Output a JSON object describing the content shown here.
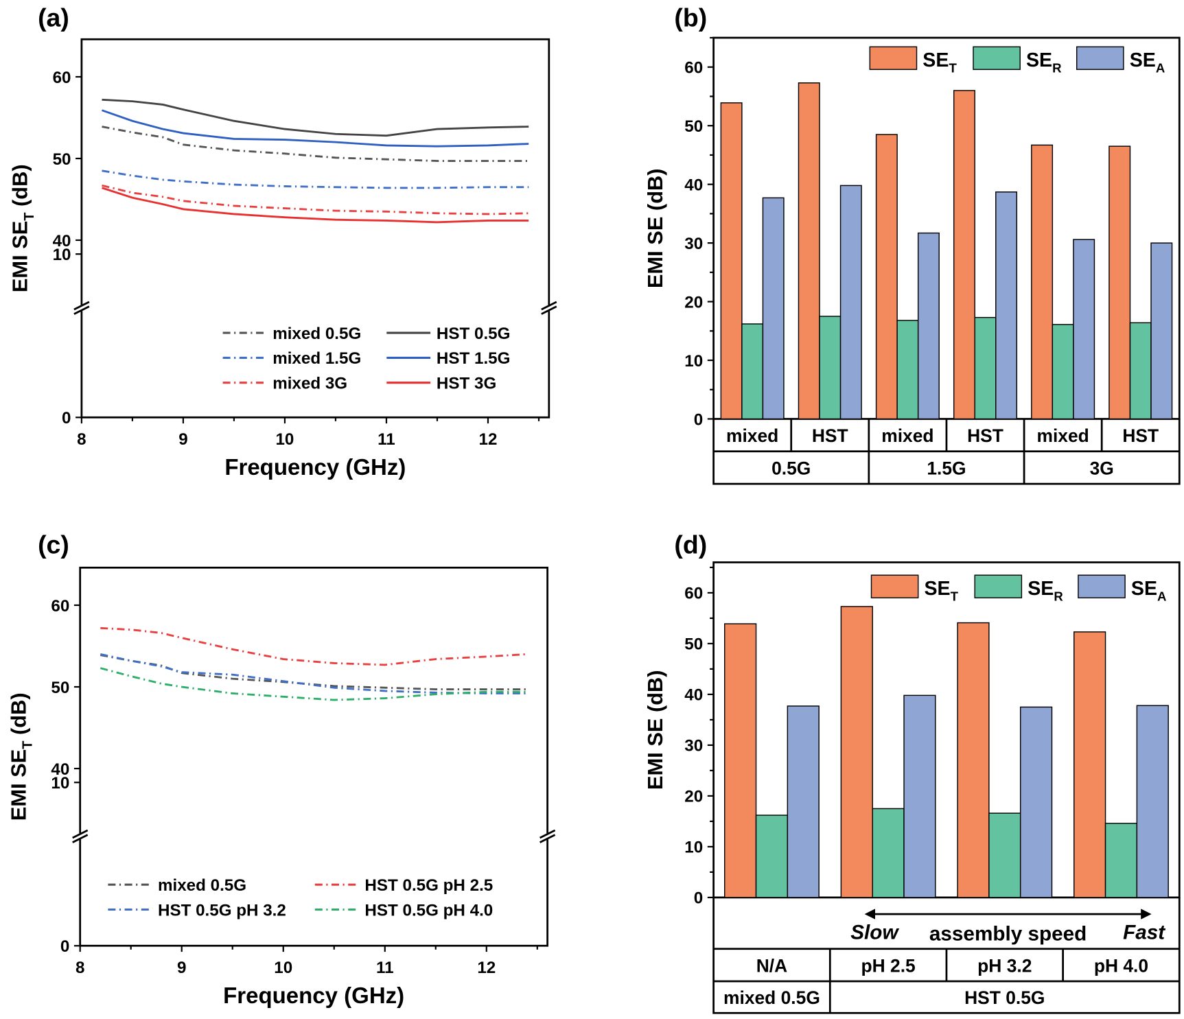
{
  "colors": {
    "SE_T": "#F28A5E",
    "SE_R": "#63C3A0",
    "SE_A": "#8FA5D3"
  },
  "chart_data": [
    {
      "panel": "(a)",
      "type": "line",
      "xlabel": "Frequency (GHz)",
      "ylabel": {
        "main": "EMI SE",
        "sub": "T",
        "unit": " (dB)"
      },
      "xlim": [
        8,
        12.6
      ],
      "xticks": [
        "8",
        "9",
        "10",
        "11",
        "12"
      ],
      "ylim_upper": [
        31.7,
        64.6
      ],
      "ylim_lower": [
        0,
        13.4
      ],
      "yticks_upper": [
        "40",
        "50",
        "60"
      ],
      "yticks_lower": [
        "0",
        "10"
      ],
      "broken_axis": true,
      "legend": "bottom-right",
      "x": [
        8.2,
        8.5,
        8.8,
        9.0,
        9.5,
        10,
        10.5,
        11,
        11.5,
        12,
        12.4
      ],
      "series": [
        {
          "name": "mixed 0.5G",
          "color": "#555555",
          "style": "dashdot",
          "values": [
            53.9,
            53.2,
            52.6,
            51.7,
            51.0,
            50.6,
            50.1,
            49.9,
            49.7,
            49.7,
            49.7
          ]
        },
        {
          "name": "HST 0.5G",
          "color": "#444444",
          "style": "solid",
          "values": [
            57.2,
            57.0,
            56.6,
            56.0,
            54.6,
            53.6,
            53.0,
            52.8,
            53.6,
            53.8,
            53.9
          ]
        },
        {
          "name": "mixed 1.5G",
          "color": "#3f6fc6",
          "style": "dashdot",
          "values": [
            48.5,
            47.9,
            47.4,
            47.2,
            46.8,
            46.6,
            46.5,
            46.4,
            46.4,
            46.5,
            46.5
          ]
        },
        {
          "name": "HST 1.5G",
          "color": "#2f5fc0",
          "style": "solid",
          "values": [
            55.9,
            54.6,
            53.6,
            53.1,
            52.4,
            52.3,
            52.0,
            51.6,
            51.5,
            51.6,
            51.8
          ]
        },
        {
          "name": "mixed 3G",
          "color": "#e84040",
          "style": "dashdot",
          "values": [
            46.7,
            45.8,
            45.3,
            44.8,
            44.2,
            43.9,
            43.6,
            43.5,
            43.3,
            43.2,
            43.3
          ]
        },
        {
          "name": "HST 3G",
          "color": "#e83030",
          "style": "solid",
          "values": [
            46.4,
            45.2,
            44.4,
            43.8,
            43.2,
            42.8,
            42.5,
            42.4,
            42.2,
            42.4,
            42.4
          ]
        }
      ]
    },
    {
      "panel": "(b)",
      "type": "bar",
      "ylabel": "EMI SE (dB)",
      "ylim": [
        0,
        65
      ],
      "yticks": [
        "0",
        "10",
        "20",
        "30",
        "40",
        "50",
        "60"
      ],
      "legend": "top-right",
      "legend_entries": [
        {
          "main": "SE",
          "sub": "T"
        },
        {
          "main": "SE",
          "sub": "R"
        },
        {
          "main": "SE",
          "sub": "A"
        }
      ],
      "categories": [
        "mixed",
        "HST",
        "mixed",
        "HST",
        "mixed",
        "HST"
      ],
      "groups": [
        "0.5G",
        "1.5G",
        "3G"
      ],
      "series": [
        {
          "key": "SE_T",
          "values": [
            53.9,
            57.3,
            48.5,
            56.0,
            46.7,
            46.5
          ]
        },
        {
          "key": "SE_R",
          "values": [
            16.2,
            17.5,
            16.8,
            17.3,
            16.1,
            16.4
          ]
        },
        {
          "key": "SE_A",
          "values": [
            37.7,
            39.8,
            31.7,
            38.7,
            30.6,
            30.0
          ]
        }
      ]
    },
    {
      "panel": "(c)",
      "type": "line",
      "xlabel": "Frequency (GHz)",
      "ylabel": {
        "main": "EMI SE",
        "sub": "T",
        "unit": " (dB)"
      },
      "xlim": [
        8,
        12.6
      ],
      "xticks": [
        "8",
        "9",
        "10",
        "11",
        "12"
      ],
      "ylim_upper": [
        31.7,
        64.6
      ],
      "ylim_lower": [
        0,
        13.4
      ],
      "yticks_upper": [
        "40",
        "50",
        "60"
      ],
      "yticks_lower": [
        "0",
        "10"
      ],
      "broken_axis": true,
      "legend": "bottom",
      "x": [
        8.2,
        8.5,
        8.8,
        9.0,
        9.5,
        10,
        10.5,
        11,
        11.5,
        12,
        12.4
      ],
      "series": [
        {
          "name": "mixed 0.5G",
          "color": "#555555",
          "style": "dashdot",
          "values": [
            53.9,
            53.2,
            52.6,
            51.7,
            51.0,
            50.6,
            50.1,
            49.9,
            49.7,
            49.7,
            49.7
          ]
        },
        {
          "name": "HST 0.5G pH 2.5",
          "color": "#e84040",
          "style": "dashdot",
          "values": [
            57.2,
            57.0,
            56.6,
            56.0,
            54.6,
            53.4,
            52.9,
            52.7,
            53.4,
            53.7,
            54.0
          ]
        },
        {
          "name": "HST 0.5G pH 3.2",
          "color": "#3f6fc6",
          "style": "dashdot",
          "values": [
            54.0,
            53.2,
            52.5,
            51.8,
            51.5,
            50.7,
            49.9,
            49.5,
            49.3,
            49.2,
            49.2
          ]
        },
        {
          "name": "HST 0.5G pH 4.0",
          "color": "#2fae6a",
          "style": "dashdot",
          "values": [
            52.3,
            51.3,
            50.4,
            50.0,
            49.2,
            48.8,
            48.4,
            48.6,
            49.1,
            49.4,
            49.4
          ]
        }
      ]
    },
    {
      "panel": "(d)",
      "type": "bar",
      "ylabel": "EMI SE (dB)",
      "ylim": [
        0,
        66
      ],
      "yticks": [
        "0",
        "10",
        "20",
        "30",
        "40",
        "50",
        "60"
      ],
      "legend": "top-right",
      "legend_entries": [
        {
          "main": "SE",
          "sub": "T"
        },
        {
          "main": "SE",
          "sub": "R"
        },
        {
          "main": "SE",
          "sub": "A"
        }
      ],
      "annotation": {
        "left": "Slow",
        "center": "assembly speed",
        "right": "Fast"
      },
      "categories": [
        "N/A",
        "pH 2.5",
        "pH 3.2",
        "pH 4.0"
      ],
      "groups": [
        "mixed 0.5G",
        "HST 0.5G"
      ],
      "series": [
        {
          "key": "SE_T",
          "values": [
            53.9,
            57.3,
            54.1,
            52.3
          ]
        },
        {
          "key": "SE_R",
          "values": [
            16.2,
            17.5,
            16.6,
            14.6
          ]
        },
        {
          "key": "SE_A",
          "values": [
            37.7,
            39.8,
            37.5,
            37.8
          ]
        }
      ]
    }
  ]
}
